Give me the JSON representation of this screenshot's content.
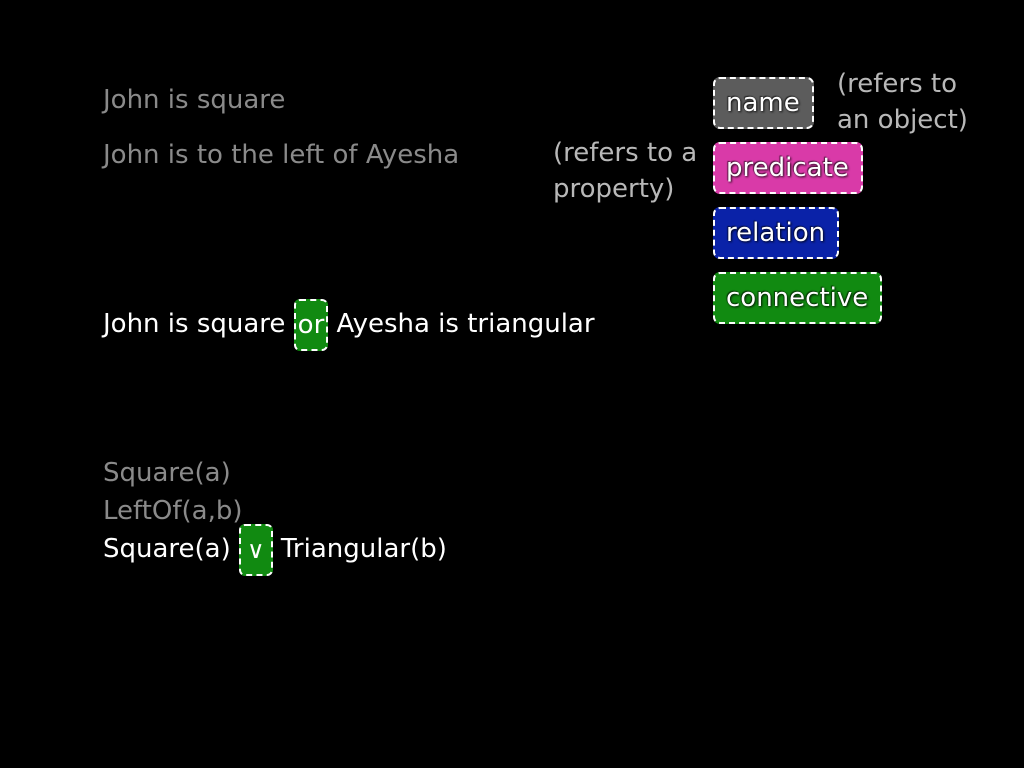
{
  "sentences": {
    "s1": "John is square",
    "s2": "John is to the left of Ayesha",
    "s3": {
      "before": "John is square",
      "connective": "or",
      "after": "Ayesha is triangular"
    }
  },
  "formulas": {
    "f1": "Square(a)",
    "f2": "LeftOf(a,b)",
    "f3": {
      "before": "Square(a)",
      "connective": "∨",
      "after": "Triangular(b)"
    }
  },
  "legend": {
    "name": "name",
    "predicate": "predicate",
    "relation": "relation",
    "connective": "connective",
    "name_note_line1": "(refers to",
    "name_note_line2": "an object)",
    "predicate_note_line1": "(refers to a",
    "predicate_note_line2": "property)"
  },
  "colors": {
    "background": "#000000",
    "name": "#5c5c5c",
    "predicate": "#d93aa8",
    "relation": "#0a22a8",
    "connective": "#118a11",
    "dim_text": "#8a8a8a"
  }
}
